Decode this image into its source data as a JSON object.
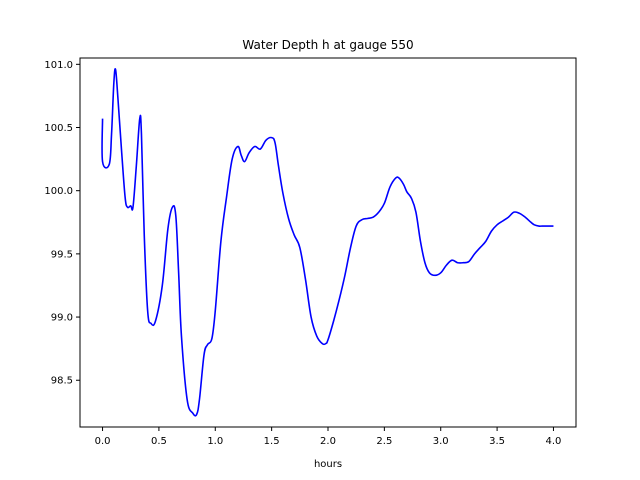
{
  "chart_data": {
    "type": "line",
    "title": "Water Depth h at gauge 550",
    "xlabel": "hours",
    "ylabel": "",
    "xlim": [
      -0.2,
      4.2
    ],
    "ylim": [
      98.13,
      101.05
    ],
    "xticks": [
      0.0,
      0.5,
      1.0,
      1.5,
      2.0,
      2.5,
      3.0,
      3.5,
      4.0
    ],
    "xtick_labels": [
      "0.0",
      "0.5",
      "1.0",
      "1.5",
      "2.0",
      "2.5",
      "3.0",
      "3.5",
      "4.0"
    ],
    "yticks": [
      98.5,
      99.0,
      99.5,
      100.0,
      100.5,
      101.0
    ],
    "ytick_labels": [
      "98.5",
      "99.0",
      "99.5",
      "100.0",
      "100.5",
      "101.0"
    ],
    "grid": false,
    "color": "#0000ff",
    "series": [
      {
        "x": [
          0.0,
          0.0,
          0.06,
          0.08,
          0.1,
          0.115,
          0.135,
          0.17,
          0.2,
          0.22,
          0.25,
          0.27,
          0.3,
          0.33,
          0.345,
          0.37,
          0.4,
          0.43,
          0.47,
          0.53,
          0.58,
          0.62,
          0.65,
          0.675,
          0.7,
          0.75,
          0.8,
          0.835,
          0.86,
          0.9,
          0.93,
          0.97,
          1.0,
          1.05,
          1.1,
          1.15,
          1.2,
          1.23,
          1.26,
          1.3,
          1.35,
          1.4,
          1.45,
          1.5,
          1.53,
          1.56,
          1.6,
          1.65,
          1.7,
          1.75,
          1.8,
          1.85,
          1.9,
          1.95,
          1.98,
          2.0,
          2.05,
          2.1,
          2.15,
          2.2,
          2.25,
          2.3,
          2.35,
          2.4,
          2.45,
          2.5,
          2.55,
          2.6,
          2.63,
          2.67,
          2.7,
          2.74,
          2.78,
          2.82,
          2.86,
          2.9,
          2.95,
          3.0,
          3.05,
          3.1,
          3.15,
          3.2,
          3.25,
          3.3,
          3.35,
          3.4,
          3.45,
          3.5,
          3.55,
          3.6,
          3.65,
          3.7,
          3.75,
          3.8,
          3.83,
          3.87,
          3.9,
          3.95,
          4.0
        ],
        "values": [
          100.57,
          100.23,
          100.21,
          100.45,
          100.85,
          100.96,
          100.75,
          100.3,
          99.95,
          99.87,
          99.88,
          99.87,
          100.2,
          100.57,
          100.45,
          99.65,
          99.05,
          98.95,
          98.97,
          99.25,
          99.7,
          99.87,
          99.8,
          99.35,
          98.85,
          98.35,
          98.24,
          98.23,
          98.35,
          98.7,
          98.78,
          98.83,
          99.05,
          99.6,
          99.95,
          100.25,
          100.35,
          100.28,
          100.23,
          100.3,
          100.35,
          100.33,
          100.4,
          100.42,
          100.38,
          100.2,
          99.98,
          99.78,
          99.65,
          99.55,
          99.3,
          99.0,
          98.85,
          98.79,
          98.79,
          98.82,
          98.97,
          99.14,
          99.33,
          99.55,
          99.72,
          99.77,
          99.78,
          99.79,
          99.83,
          99.9,
          100.03,
          100.1,
          100.1,
          100.05,
          99.99,
          99.94,
          99.83,
          99.6,
          99.43,
          99.35,
          99.33,
          99.35,
          99.41,
          99.45,
          99.43,
          99.43,
          99.44,
          99.5,
          99.55,
          99.6,
          99.68,
          99.73,
          99.76,
          99.79,
          99.83,
          99.82,
          99.79,
          99.75,
          99.73,
          99.72,
          99.72,
          99.72,
          99.72
        ]
      }
    ]
  }
}
